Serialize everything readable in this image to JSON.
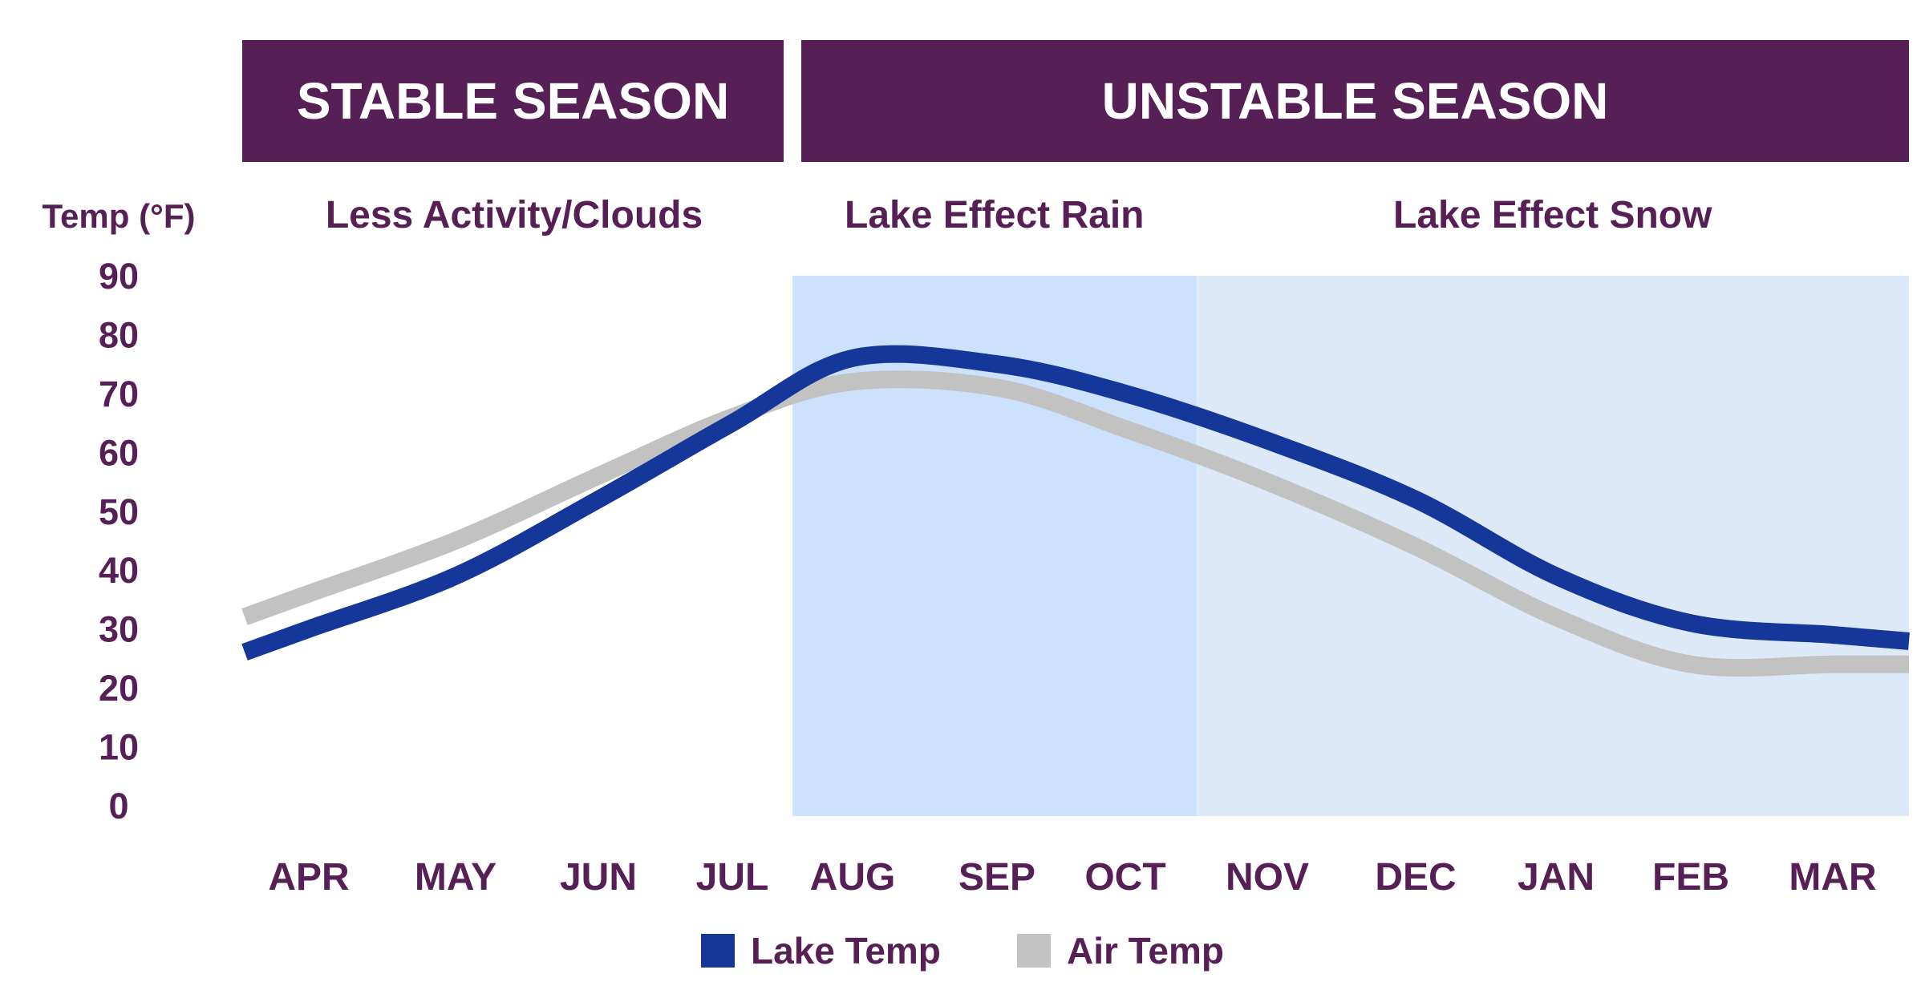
{
  "colors": {
    "banner": "#561f56",
    "text": "#561f56",
    "banner_text": "#ffffff",
    "lake": "#16379a",
    "air": "#c2c2c2",
    "rain_band": "#cce1fb",
    "snow_band": "#dde9f6"
  },
  "seasons": [
    {
      "label": "STABLE SEASON",
      "from": "APR",
      "to": "JUL"
    },
    {
      "label": "UNSTABLE SEASON",
      "from": "AUG",
      "to": "MAR"
    }
  ],
  "phases": [
    {
      "label": "Less Activity/Clouds",
      "from": "APR",
      "to": "JUL",
      "shaded": false
    },
    {
      "label": "Lake Effect Rain",
      "from": "AUG",
      "to": "NOV",
      "shaded": true,
      "color_key": "rain_band"
    },
    {
      "label": "Lake Effect Snow",
      "from": "NOV",
      "to": "MAR",
      "shaded": true,
      "color_key": "snow_band"
    }
  ],
  "chart_data": {
    "type": "line",
    "ylabel": "Temp (°F)",
    "xlabel": "",
    "ylim": [
      0,
      90
    ],
    "yticks": [
      0,
      10,
      20,
      30,
      40,
      50,
      60,
      70,
      80,
      90
    ],
    "categories": [
      "APR",
      "MAY",
      "JUN",
      "JUL",
      "AUG",
      "SEP",
      "OCT",
      "NOV",
      "DEC",
      "JAN",
      "FEB",
      "MAR"
    ],
    "grid": false,
    "legend_position": "bottom-center",
    "series": [
      {
        "name": "Lake Temp",
        "color_key": "lake",
        "x": [
          "APR",
          "MAY",
          "JUN",
          "JUL",
          "AUG",
          "SEP",
          "OCT",
          "NOV",
          "DEC",
          "JAN",
          "FEB",
          "MAR"
        ],
        "values": [
          30,
          39,
          52,
          65,
          76,
          75,
          70,
          62,
          52,
          39,
          31,
          29
        ]
      },
      {
        "name": "Air Temp",
        "color_key": "air",
        "x": [
          "APR",
          "MAY",
          "JUN",
          "JUL",
          "AUG",
          "SEP",
          "OCT",
          "NOV",
          "DEC",
          "JAN",
          "FEB",
          "MAR"
        ],
        "values": [
          36,
          45,
          56,
          66,
          72,
          71,
          64,
          55,
          44,
          32,
          24,
          24
        ]
      }
    ]
  }
}
